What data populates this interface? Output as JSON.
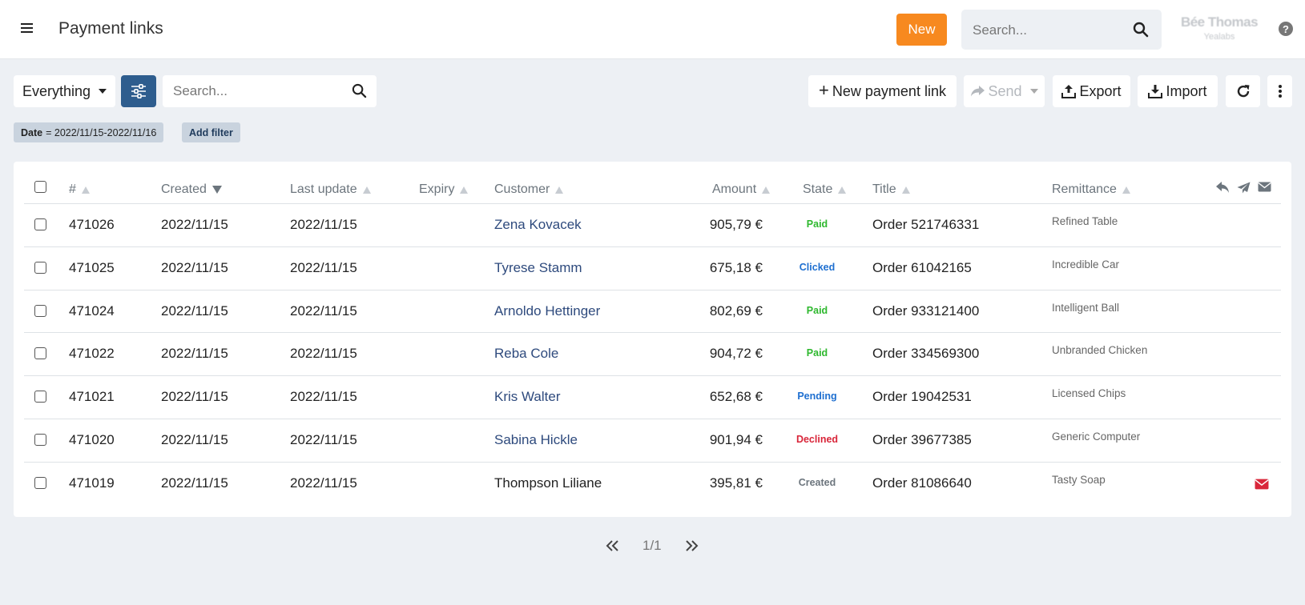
{
  "header": {
    "title": "Payment links",
    "new_label": "New",
    "search_placeholder": "Search...",
    "user_name": "Bée Thomas",
    "user_role": "Yealabs",
    "help_label": "?"
  },
  "toolbar": {
    "scope_label": "Everything",
    "search_placeholder": "Search...",
    "new_link_label": "New payment link",
    "send_label": "Send",
    "export_label": "Export",
    "import_label": "Import"
  },
  "filters": {
    "date_key": "Date",
    "date_value": "= 2022/11/15-2022/11/16",
    "add_label": "Add filter"
  },
  "table": {
    "columns": {
      "id": "#",
      "created": "Created",
      "last_update": "Last update",
      "expiry": "Expiry",
      "customer": "Customer",
      "amount": "Amount",
      "state": "State",
      "title": "Title",
      "remittance": "Remittance"
    },
    "rows": [
      {
        "id": "471026",
        "created": "2022/11/15",
        "last_update": "2022/11/15",
        "expiry": "",
        "customer": "Zena Kovacek",
        "customer_linked": true,
        "amount": "905,79 €",
        "state": "Paid",
        "state_color": "#2eb82e",
        "title": "Order 521746331",
        "remittance": "Refined Table",
        "mail_icon": false
      },
      {
        "id": "471025",
        "created": "2022/11/15",
        "last_update": "2022/11/15",
        "expiry": "",
        "customer": "Tyrese Stamm",
        "customer_linked": true,
        "amount": "675,18 €",
        "state": "Clicked",
        "state_color": "#1e6fd0",
        "title": "Order 61042165",
        "remittance": "Incredible Car",
        "mail_icon": false
      },
      {
        "id": "471024",
        "created": "2022/11/15",
        "last_update": "2022/11/15",
        "expiry": "",
        "customer": "Arnoldo Hettinger",
        "customer_linked": true,
        "amount": "802,69 €",
        "state": "Paid",
        "state_color": "#2eb82e",
        "title": "Order 933121400",
        "remittance": "Intelligent Ball",
        "mail_icon": false
      },
      {
        "id": "471022",
        "created": "2022/11/15",
        "last_update": "2022/11/15",
        "expiry": "",
        "customer": "Reba Cole",
        "customer_linked": true,
        "amount": "904,72 €",
        "state": "Paid",
        "state_color": "#2eb82e",
        "title": "Order 334569300",
        "remittance": "Unbranded Chicken",
        "mail_icon": false
      },
      {
        "id": "471021",
        "created": "2022/11/15",
        "last_update": "2022/11/15",
        "expiry": "",
        "customer": "Kris Walter",
        "customer_linked": true,
        "amount": "652,68 €",
        "state": "Pending",
        "state_color": "#1e6fd0",
        "title": "Order 19042531",
        "remittance": "Licensed Chips",
        "mail_icon": false
      },
      {
        "id": "471020",
        "created": "2022/11/15",
        "last_update": "2022/11/15",
        "expiry": "",
        "customer": "Sabina Hickle",
        "customer_linked": true,
        "amount": "901,94 €",
        "state": "Declined",
        "state_color": "#d9263a",
        "title": "Order 39677385",
        "remittance": "Generic Computer",
        "mail_icon": false
      },
      {
        "id": "471019",
        "created": "2022/11/15",
        "last_update": "2022/11/15",
        "expiry": "",
        "customer": "Thompson Liliane",
        "customer_linked": false,
        "amount": "395,81 €",
        "state": "Created",
        "state_color": "#6c757d",
        "title": "Order 81086640",
        "remittance": "Tasty Soap",
        "mail_icon": true
      }
    ]
  },
  "pagination": {
    "label": "1/1"
  },
  "colors": {
    "accent": "#f7891f",
    "primary": "#2e5d8e",
    "link": "#2e4a7d",
    "mail_red": "#d9263a"
  }
}
